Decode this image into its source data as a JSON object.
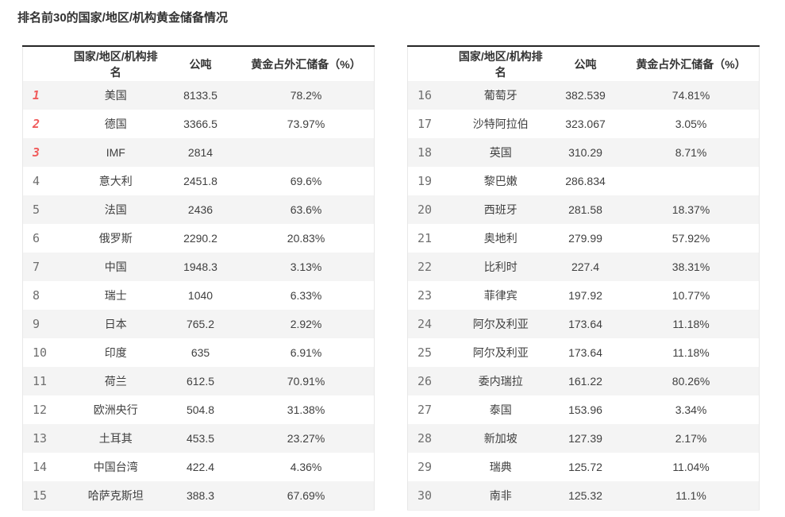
{
  "page": {
    "title": "排名前30的国家/地区/机构黄金储备情况"
  },
  "columns": {
    "rank_blank": "",
    "rank_country": "国家/地区/机构排名",
    "tons": "公吨",
    "pct": "黄金占外汇储备（%）"
  },
  "colors": {
    "accent_rank_top3": "#f05b5b",
    "rank_gray": "#6f6f6f",
    "row_alt_bg": "#f4f4f4",
    "table_top_border": "#262626",
    "table_side_border": "#e8e8e8",
    "text": "#404040"
  },
  "tables": [
    {
      "rows": [
        {
          "rank": "1",
          "country": "美国",
          "tons": "8133.5",
          "pct": "78.2%"
        },
        {
          "rank": "2",
          "country": "德国",
          "tons": "3366.5",
          "pct": "73.97%"
        },
        {
          "rank": "3",
          "country": "IMF",
          "tons": "2814",
          "pct": ""
        },
        {
          "rank": "4",
          "country": "意大利",
          "tons": "2451.8",
          "pct": "69.6%"
        },
        {
          "rank": "5",
          "country": "法国",
          "tons": "2436",
          "pct": "63.6%"
        },
        {
          "rank": "6",
          "country": "俄罗斯",
          "tons": "2290.2",
          "pct": "20.83%"
        },
        {
          "rank": "7",
          "country": "中国",
          "tons": "1948.3",
          "pct": "3.13%"
        },
        {
          "rank": "8",
          "country": "瑞士",
          "tons": "1040",
          "pct": "6.33%"
        },
        {
          "rank": "9",
          "country": "日本",
          "tons": "765.2",
          "pct": "2.92%"
        },
        {
          "rank": "10",
          "country": "印度",
          "tons": "635",
          "pct": "6.91%"
        },
        {
          "rank": "11",
          "country": "荷兰",
          "tons": "612.5",
          "pct": "70.91%"
        },
        {
          "rank": "12",
          "country": "欧洲央行",
          "tons": "504.8",
          "pct": "31.38%"
        },
        {
          "rank": "13",
          "country": "土耳其",
          "tons": "453.5",
          "pct": "23.27%"
        },
        {
          "rank": "14",
          "country": "中国台湾",
          "tons": "422.4",
          "pct": "4.36%"
        },
        {
          "rank": "15",
          "country": "哈萨克斯坦",
          "tons": "388.3",
          "pct": "67.69%"
        }
      ]
    },
    {
      "rows": [
        {
          "rank": "16",
          "country": "葡萄牙",
          "tons": "382.539",
          "pct": "74.81%"
        },
        {
          "rank": "17",
          "country": "沙特阿拉伯",
          "tons": "323.067",
          "pct": "3.05%"
        },
        {
          "rank": "18",
          "country": "英国",
          "tons": "310.29",
          "pct": "8.71%"
        },
        {
          "rank": "19",
          "country": "黎巴嫩",
          "tons": "286.834",
          "pct": ""
        },
        {
          "rank": "20",
          "country": "西班牙",
          "tons": "281.58",
          "pct": "18.37%"
        },
        {
          "rank": "21",
          "country": "奥地利",
          "tons": "279.99",
          "pct": "57.92%"
        },
        {
          "rank": "22",
          "country": "比利时",
          "tons": "227.4",
          "pct": "38.31%"
        },
        {
          "rank": "23",
          "country": "菲律宾",
          "tons": "197.92",
          "pct": "10.77%"
        },
        {
          "rank": "24",
          "country": "阿尔及利亚",
          "tons": "173.64",
          "pct": "11.18%"
        },
        {
          "rank": "25",
          "country": "阿尔及利亚",
          "tons": "173.64",
          "pct": "11.18%"
        },
        {
          "rank": "26",
          "country": "委内瑞拉",
          "tons": "161.22",
          "pct": "80.26%"
        },
        {
          "rank": "27",
          "country": "泰国",
          "tons": "153.96",
          "pct": "3.34%"
        },
        {
          "rank": "28",
          "country": "新加坡",
          "tons": "127.39",
          "pct": "2.17%"
        },
        {
          "rank": "29",
          "country": "瑞典",
          "tons": "125.72",
          "pct": "11.04%"
        },
        {
          "rank": "30",
          "country": "南非",
          "tons": "125.32",
          "pct": "11.1%"
        }
      ]
    }
  ],
  "chart_data": {
    "type": "table",
    "title": "排名前30的国家/地区/机构黄金储备情况",
    "columns": [
      "排名",
      "国家/地区/机构排名",
      "公吨",
      "黄金占外汇储备（%）"
    ],
    "rows": [
      [
        1,
        "美国",
        8133.5,
        "78.2%"
      ],
      [
        2,
        "德国",
        3366.5,
        "73.97%"
      ],
      [
        3,
        "IMF",
        2814,
        ""
      ],
      [
        4,
        "意大利",
        2451.8,
        "69.6%"
      ],
      [
        5,
        "法国",
        2436,
        "63.6%"
      ],
      [
        6,
        "俄罗斯",
        2290.2,
        "20.83%"
      ],
      [
        7,
        "中国",
        1948.3,
        "3.13%"
      ],
      [
        8,
        "瑞士",
        1040,
        "6.33%"
      ],
      [
        9,
        "日本",
        765.2,
        "2.92%"
      ],
      [
        10,
        "印度",
        635,
        "6.91%"
      ],
      [
        11,
        "荷兰",
        612.5,
        "70.91%"
      ],
      [
        12,
        "欧洲央行",
        504.8,
        "31.38%"
      ],
      [
        13,
        "土耳其",
        453.5,
        "23.27%"
      ],
      [
        14,
        "中国台湾",
        422.4,
        "4.36%"
      ],
      [
        15,
        "哈萨克斯坦",
        388.3,
        "67.69%"
      ],
      [
        16,
        "葡萄牙",
        382.539,
        "74.81%"
      ],
      [
        17,
        "沙特阿拉伯",
        323.067,
        "3.05%"
      ],
      [
        18,
        "英国",
        310.29,
        "8.71%"
      ],
      [
        19,
        "黎巴嫩",
        286.834,
        ""
      ],
      [
        20,
        "西班牙",
        281.58,
        "18.37%"
      ],
      [
        21,
        "奥地利",
        279.99,
        "57.92%"
      ],
      [
        22,
        "比利时",
        227.4,
        "38.31%"
      ],
      [
        23,
        "菲律宾",
        197.92,
        "10.77%"
      ],
      [
        24,
        "阿尔及利亚",
        173.64,
        "11.18%"
      ],
      [
        25,
        "阿尔及利亚",
        173.64,
        "11.18%"
      ],
      [
        26,
        "委内瑞拉",
        161.22,
        "80.26%"
      ],
      [
        27,
        "泰国",
        153.96,
        "3.34%"
      ],
      [
        28,
        "新加坡",
        127.39,
        "2.17%"
      ],
      [
        29,
        "瑞典",
        125.72,
        "11.04%"
      ],
      [
        30,
        "南非",
        125.32,
        "11.1%"
      ]
    ],
    "layout": {
      "split": "two side-by-side tables, ranks 1-15 left, 16-30 right",
      "stripes": "odd rows shaded"
    }
  }
}
